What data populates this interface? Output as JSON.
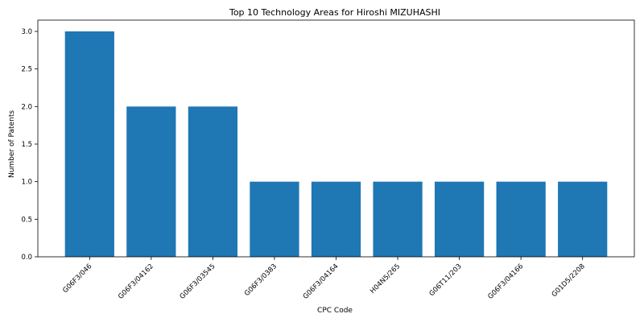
{
  "chart_data": {
    "type": "bar",
    "title": "Top 10 Technology Areas for Hiroshi MIZUHASHI",
    "xlabel": "CPC Code",
    "ylabel": "Number of Patents",
    "categories": [
      "G06F3/046",
      "G06F3/04162",
      "G06F3/03545",
      "G06F3/0383",
      "G06F3/04164",
      "H04N5/265",
      "G06T11/203",
      "G06F3/04166",
      "G01D5/2208"
    ],
    "values": [
      3,
      2,
      2,
      1,
      1,
      1,
      1,
      1,
      1
    ],
    "ylim": [
      0,
      3.15
    ],
    "yticks": [
      "0.0",
      "0.5",
      "1.0",
      "1.5",
      "2.0",
      "2.5",
      "3.0"
    ],
    "grid": false,
    "colors": {
      "bar": "#1f77b4"
    }
  }
}
